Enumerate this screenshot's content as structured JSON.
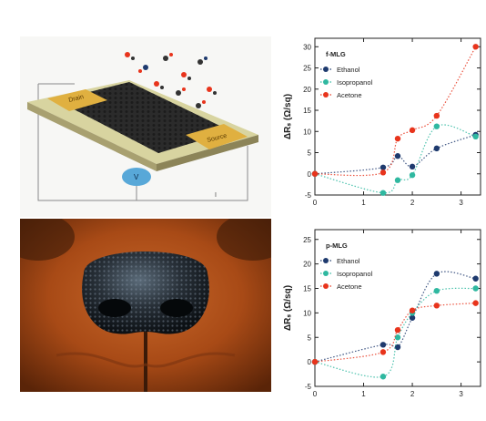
{
  "illustration": {
    "drain_label": "Drain",
    "source_label": "Source",
    "meter_label": "V",
    "current_label": "I"
  },
  "chart_data": [
    {
      "type": "scatter",
      "title": "f-MLG",
      "ylabel": "ΔRₛ (Ω/sq)",
      "xlabel": "",
      "xlim": [
        0,
        3.4
      ],
      "ylim": [
        -5,
        32
      ],
      "xticks": [
        "0",
        "1",
        "2",
        "3"
      ],
      "yticks": [
        "-5",
        "0",
        "5",
        "10",
        "15",
        "20",
        "25",
        "30"
      ],
      "grid": false,
      "legend_position": "top-left",
      "series": [
        {
          "name": "Ethanol",
          "color": "#1e3a6e",
          "x": [
            0,
            1.4,
            1.7,
            2.0,
            2.5,
            3.3
          ],
          "y": [
            0,
            1.5,
            4.2,
            1.7,
            6.0,
            9.2
          ]
        },
        {
          "name": "Isopropanol",
          "color": "#2fb8a0",
          "x": [
            0,
            1.4,
            1.7,
            2.0,
            2.5,
            3.3
          ],
          "y": [
            0,
            -4.5,
            -1.5,
            -0.3,
            11.2,
            8.8
          ]
        },
        {
          "name": "Acetone",
          "color": "#e8341c",
          "x": [
            0,
            1.4,
            1.7,
            2.0,
            2.5,
            3.3
          ],
          "y": [
            0,
            0.3,
            8.3,
            10.3,
            13.7,
            30.0
          ]
        }
      ]
    },
    {
      "type": "scatter",
      "title": "p-MLG",
      "ylabel": "ΔRₛ (Ω/sq)",
      "xlabel": "",
      "xlim": [
        0,
        3.4
      ],
      "ylim": [
        -5,
        27
      ],
      "xticks": [
        "0",
        "1",
        "2",
        "3"
      ],
      "yticks": [
        "-5",
        "0",
        "5",
        "10",
        "15",
        "20",
        "25"
      ],
      "grid": false,
      "legend_position": "top-left",
      "series": [
        {
          "name": "Ethanol",
          "color": "#1e3a6e",
          "x": [
            0,
            1.4,
            1.7,
            2.0,
            2.5,
            3.3
          ],
          "y": [
            0,
            3.5,
            3.0,
            9.0,
            18.0,
            17.0
          ]
        },
        {
          "name": "Isopropanol",
          "color": "#2fb8a0",
          "x": [
            0,
            1.4,
            1.7,
            2.0,
            2.5,
            3.3
          ],
          "y": [
            0,
            -3.0,
            5.0,
            10.0,
            14.5,
            15.0
          ]
        },
        {
          "name": "Acetone",
          "color": "#e8341c",
          "x": [
            0,
            1.4,
            1.7,
            2.0,
            2.5,
            3.3
          ],
          "y": [
            0,
            2.0,
            6.5,
            10.5,
            11.5,
            12.0
          ]
        }
      ]
    }
  ]
}
